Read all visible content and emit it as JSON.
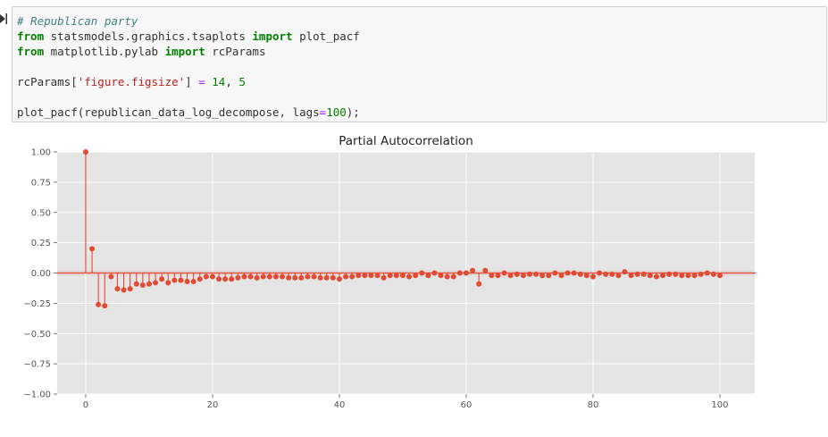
{
  "code_lines": [
    [
      {
        "t": "# Republican party",
        "c": "comment"
      }
    ],
    [
      {
        "t": "from",
        "c": "kw"
      },
      {
        "t": " statsmodels.graphics.tsaplots ",
        "c": "plain"
      },
      {
        "t": "import",
        "c": "kw"
      },
      {
        "t": " plot_pacf",
        "c": "plain"
      }
    ],
    [
      {
        "t": "from",
        "c": "kw"
      },
      {
        "t": " matplotlib.pylab ",
        "c": "plain"
      },
      {
        "t": "import",
        "c": "kw"
      },
      {
        "t": " rcParams",
        "c": "plain"
      }
    ],
    [],
    [
      {
        "t": "rcParams[",
        "c": "plain"
      },
      {
        "t": "'figure.figsize'",
        "c": "str"
      },
      {
        "t": "] ",
        "c": "plain"
      },
      {
        "t": "=",
        "c": "op"
      },
      {
        "t": " ",
        "c": "plain"
      },
      {
        "t": "14",
        "c": "num"
      },
      {
        "t": ", ",
        "c": "plain"
      },
      {
        "t": "5",
        "c": "num"
      }
    ],
    [],
    [
      {
        "t": "plot_pacf(republican_data_log_decompose, lags",
        "c": "plain"
      },
      {
        "t": "=",
        "c": "op"
      },
      {
        "t": "100",
        "c": "num"
      },
      {
        "t": ");",
        "c": "plain"
      }
    ]
  ],
  "chart_data": {
    "type": "stem",
    "title": "Partial Autocorrelation",
    "xlabel": "",
    "ylabel": "",
    "xlim": [
      -4.5,
      105.5
    ],
    "ylim": [
      -1.0,
      1.0
    ],
    "xticks": [
      0,
      20,
      40,
      60,
      80,
      100
    ],
    "yticks": [
      1.0,
      0.75,
      0.5,
      0.25,
      0.0,
      -0.25,
      -0.5,
      -0.75,
      -1.0
    ],
    "ytick_labels": [
      "1.00",
      "0.75",
      "0.50",
      "0.25",
      "0.00",
      "−0.25",
      "−0.50",
      "−0.75",
      "−1.00"
    ],
    "xtick_labels": [
      "0",
      "20",
      "40",
      "60",
      "80",
      "100"
    ],
    "grid": true,
    "colors": {
      "marker": "#e24a33",
      "background": "#e5e5e5",
      "grid": "#ffffff",
      "text": "#555555"
    },
    "lags": [
      0,
      1,
      2,
      3,
      4,
      5,
      6,
      7,
      8,
      9,
      10,
      11,
      12,
      13,
      14,
      15,
      16,
      17,
      18,
      19,
      20,
      21,
      22,
      23,
      24,
      25,
      26,
      27,
      28,
      29,
      30,
      31,
      32,
      33,
      34,
      35,
      36,
      37,
      38,
      39,
      40,
      41,
      42,
      43,
      44,
      45,
      46,
      47,
      48,
      49,
      50,
      51,
      52,
      53,
      54,
      55,
      56,
      57,
      58,
      59,
      60,
      61,
      62,
      63,
      64,
      65,
      66,
      67,
      68,
      69,
      70,
      71,
      72,
      73,
      74,
      75,
      76,
      77,
      78,
      79,
      80,
      81,
      82,
      83,
      84,
      85,
      86,
      87,
      88,
      89,
      90,
      91,
      92,
      93,
      94,
      95,
      96,
      97,
      98,
      99,
      100
    ],
    "values": [
      1.0,
      0.2,
      -0.26,
      -0.27,
      -0.03,
      -0.13,
      -0.14,
      -0.13,
      -0.09,
      -0.1,
      -0.09,
      -0.08,
      -0.05,
      -0.08,
      -0.06,
      -0.06,
      -0.07,
      -0.07,
      -0.05,
      -0.03,
      -0.03,
      -0.05,
      -0.05,
      -0.05,
      -0.04,
      -0.03,
      -0.03,
      -0.04,
      -0.03,
      -0.03,
      -0.03,
      -0.03,
      -0.04,
      -0.04,
      -0.04,
      -0.03,
      -0.03,
      -0.04,
      -0.04,
      -0.04,
      -0.05,
      -0.03,
      -0.03,
      -0.02,
      -0.02,
      -0.02,
      -0.02,
      -0.04,
      -0.02,
      -0.02,
      -0.02,
      -0.03,
      -0.02,
      0.0,
      -0.02,
      0.0,
      -0.02,
      -0.03,
      -0.03,
      0.0,
      0.0,
      0.02,
      -0.09,
      0.02,
      -0.02,
      -0.02,
      0.0,
      -0.02,
      -0.01,
      -0.02,
      -0.01,
      -0.01,
      -0.02,
      -0.02,
      0.0,
      -0.02,
      0.0,
      0.0,
      -0.01,
      -0.02,
      -0.03,
      0.0,
      -0.01,
      -0.01,
      -0.02,
      0.01,
      -0.02,
      -0.01,
      -0.01,
      -0.02,
      -0.03,
      -0.02,
      -0.01,
      -0.01,
      -0.02,
      -0.02,
      -0.02,
      -0.01,
      0.0,
      -0.01,
      -0.02
    ],
    "confidence_band": [
      -0.02,
      0.02
    ]
  }
}
